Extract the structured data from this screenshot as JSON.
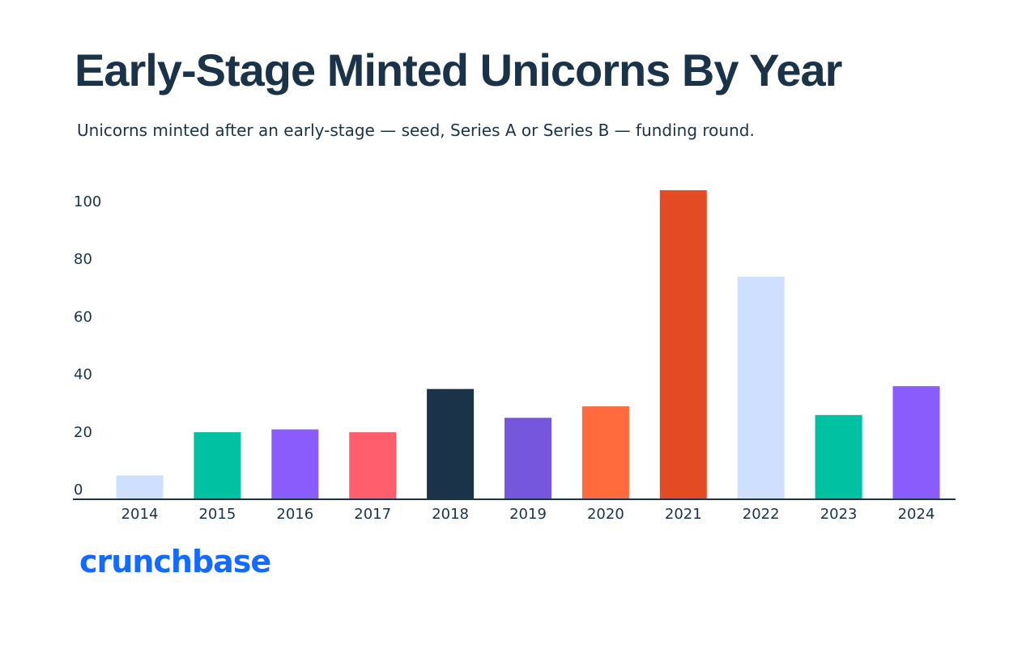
{
  "header": {
    "title": "Early-Stage Minted Unicorns By Year",
    "subtitle": "Unicorns minted after an early-stage — seed, Series A or Series B — funding round."
  },
  "brand": {
    "logo_text": "crunchbase",
    "logo_color": "#146aff"
  },
  "chart_data": {
    "type": "bar",
    "title": "Early-Stage Minted Unicorns By Year",
    "subtitle": "Unicorns minted after an early-stage — seed, Series A or Series B — funding round.",
    "xlabel": "",
    "ylabel": "",
    "categories": [
      "2014",
      "2015",
      "2016",
      "2017",
      "2018",
      "2019",
      "2020",
      "2021",
      "2022",
      "2023",
      "2024"
    ],
    "values": [
      8,
      23,
      24,
      23,
      38,
      28,
      32,
      107,
      77,
      29,
      39
    ],
    "bar_colors": [
      "#cfdfff",
      "#00c2a3",
      "#8b5cfc",
      "#ff5e6c",
      "#1b3349",
      "#7457dc",
      "#ff6b3d",
      "#e34b25",
      "#cfdfff",
      "#00c2a3",
      "#8b5cfc"
    ],
    "yticks": [
      0,
      20,
      40,
      60,
      80,
      100
    ],
    "ylim": [
      0,
      110
    ],
    "grid": false,
    "legend": "none",
    "axis_color": "#1b3349"
  }
}
